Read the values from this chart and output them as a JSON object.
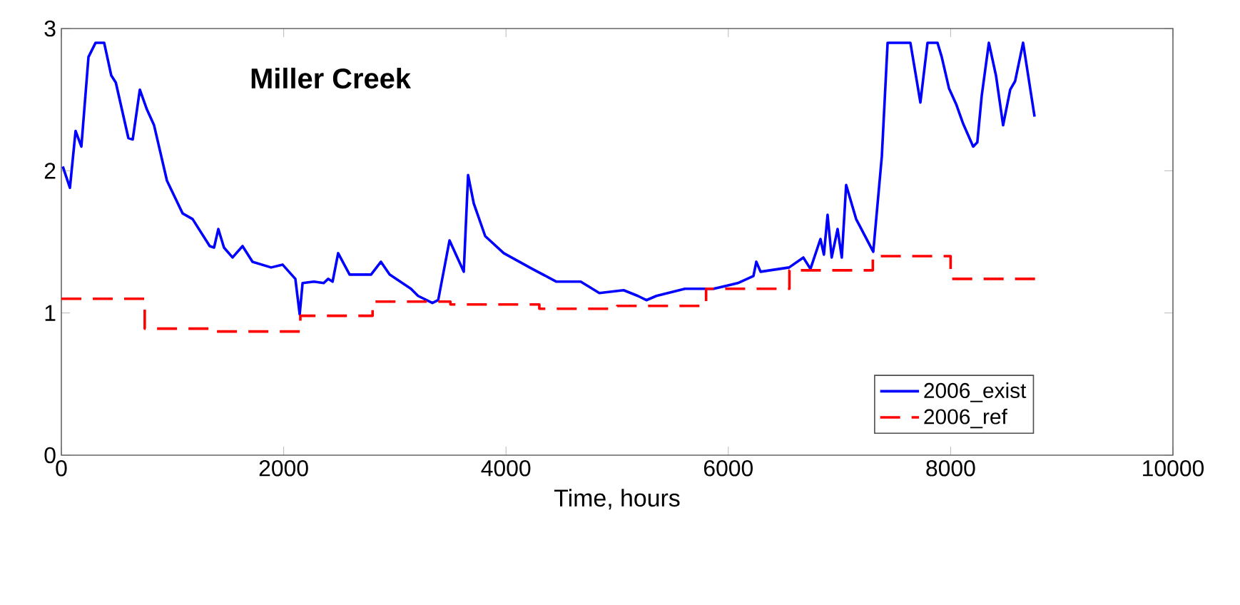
{
  "chart_data": {
    "type": "line",
    "title": "Miller Creek",
    "xlabel": "Time, hours",
    "xlim": [
      0,
      10000
    ],
    "ylim": [
      0,
      3
    ],
    "xticks": [
      0,
      2000,
      4000,
      6000,
      8000,
      10000
    ],
    "yticks": [
      0,
      1,
      2,
      3
    ],
    "grid": false,
    "legend": "bottom right",
    "marker": "none",
    "series": [
      {
        "name": "2006_exist",
        "color": "#0000ff",
        "line_style": "solid",
        "x": [
          13,
          77,
          128,
          180,
          244,
          308,
          385,
          449,
          490,
          603,
          642,
          706,
          770,
          834,
          950,
          1091,
          1181,
          1335,
          1374,
          1412,
          1463,
          1540,
          1630,
          1720,
          1887,
          1990,
          2105,
          2144,
          2170,
          2272,
          2360,
          2400,
          2440,
          2490,
          2593,
          2786,
          2875,
          2953,
          3145,
          3209,
          3338,
          3390,
          3492,
          3620,
          3659,
          3710,
          3813,
          3980,
          4236,
          4454,
          4672,
          4840,
          5058,
          5186,
          5263,
          5353,
          5610,
          5867,
          6085,
          6226,
          6252,
          6290,
          6547,
          6675,
          6739,
          6829,
          6860,
          6893,
          6930,
          6983,
          7021,
          7060,
          7150,
          7304,
          7381,
          7433,
          7638,
          7728,
          7792,
          7882,
          7920,
          7985,
          8049,
          8113,
          8203,
          8240,
          8280,
          8344,
          8408,
          8472,
          8536,
          8580,
          8652,
          8755
        ],
        "values": [
          2.03,
          1.88,
          2.28,
          2.17,
          2.8,
          2.9,
          2.9,
          2.67,
          2.62,
          2.23,
          2.22,
          2.57,
          2.43,
          2.32,
          1.93,
          1.7,
          1.66,
          1.47,
          1.46,
          1.59,
          1.46,
          1.39,
          1.47,
          1.36,
          1.32,
          1.34,
          1.24,
          0.99,
          1.21,
          1.22,
          1.21,
          1.24,
          1.22,
          1.42,
          1.27,
          1.27,
          1.36,
          1.27,
          1.17,
          1.12,
          1.07,
          1.09,
          1.51,
          1.29,
          1.97,
          1.77,
          1.54,
          1.42,
          1.31,
          1.22,
          1.22,
          1.14,
          1.16,
          1.12,
          1.09,
          1.12,
          1.17,
          1.17,
          1.21,
          1.26,
          1.36,
          1.29,
          1.32,
          1.39,
          1.31,
          1.52,
          1.41,
          1.69,
          1.39,
          1.59,
          1.39,
          1.9,
          1.66,
          1.43,
          2.1,
          2.9,
          2.9,
          2.48,
          2.9,
          2.9,
          2.8,
          2.58,
          2.47,
          2.33,
          2.17,
          2.2,
          2.53,
          2.9,
          2.67,
          2.32,
          2.57,
          2.63,
          2.9,
          2.38
        ]
      },
      {
        "name": "2006_ref",
        "type": "step",
        "color": "#ff0000",
        "line_style": "dashed",
        "x": [
          0,
          750,
          1400,
          2150,
          2800,
          3500,
          4300,
          5000,
          5800,
          6550,
          7300,
          8000,
          8760
        ],
        "values": [
          1.1,
          0.89,
          0.87,
          0.98,
          1.08,
          1.06,
          1.03,
          1.05,
          1.17,
          1.3,
          1.4,
          1.24,
          1.24
        ]
      }
    ]
  }
}
